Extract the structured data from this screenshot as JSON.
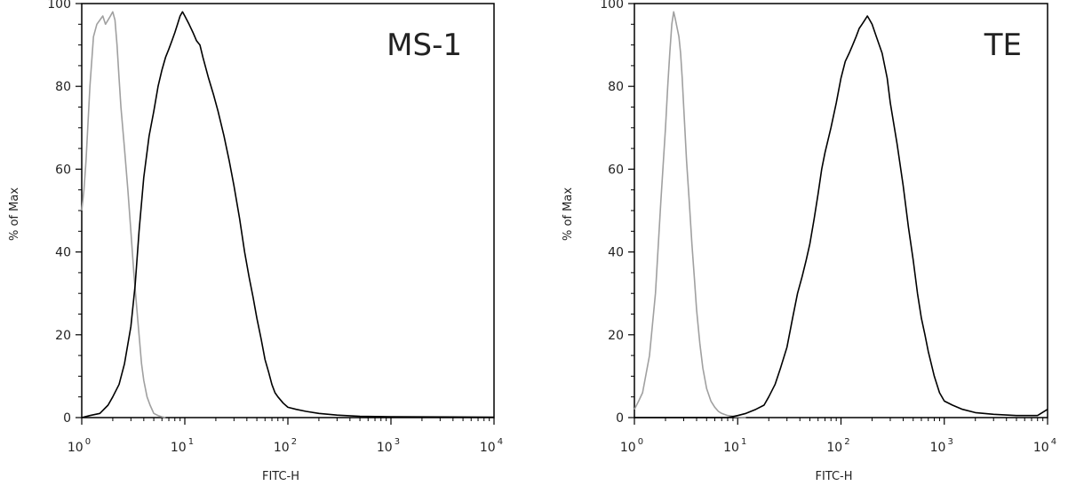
{
  "chart_data": [
    {
      "type": "line",
      "title": "MS-1",
      "xlabel": "FITC-H",
      "ylabel": "% of Max",
      "xscale": "log",
      "xlim": [
        1,
        10000
      ],
      "ylim": [
        0,
        100
      ],
      "x_tick_labels": [
        {
          "base": "10",
          "exp": "0"
        },
        {
          "base": "10",
          "exp": "1"
        },
        {
          "base": "10",
          "exp": "2"
        },
        {
          "base": "10",
          "exp": "3"
        },
        {
          "base": "10",
          "exp": "4"
        }
      ],
      "y_ticks": [
        0,
        20,
        40,
        60,
        80,
        100
      ],
      "y_tick_labels": [
        "0",
        "20",
        "40",
        "60",
        "80",
        "100"
      ],
      "series": [
        {
          "color": "#a0a0a0",
          "x": [
            1.0,
            1.05,
            1.1,
            1.2,
            1.3,
            1.4,
            1.5,
            1.6,
            1.7,
            1.8,
            1.9,
            2.0,
            2.1,
            2.2,
            2.3,
            2.4,
            2.6,
            2.8,
            3.0,
            3.2,
            3.4,
            3.6,
            3.8,
            4.0,
            4.3,
            4.6,
            5.0,
            5.5,
            6.0,
            6.5
          ],
          "y": [
            50,
            55,
            62,
            80,
            92,
            95,
            96,
            97,
            95,
            96,
            97,
            98,
            96,
            90,
            82,
            75,
            65,
            55,
            45,
            35,
            27,
            20,
            13,
            9,
            5,
            3,
            1,
            0.5,
            0.2,
            0
          ]
        },
        {
          "color": "#000000",
          "x": [
            1.0,
            1.2,
            1.5,
            1.8,
            2.0,
            2.3,
            2.6,
            3.0,
            3.3,
            3.6,
            4.0,
            4.5,
            5.0,
            5.5,
            6.0,
            6.5,
            7.0,
            7.5,
            8.0,
            8.5,
            9.0,
            9.5,
            10,
            11,
            12,
            13,
            14,
            15,
            17,
            19,
            21,
            24,
            27,
            30,
            34,
            38,
            42,
            46,
            50,
            55,
            60,
            65,
            70,
            75,
            80,
            90,
            100,
            120,
            150,
            200,
            300,
            500,
            1000,
            10000
          ],
          "y": [
            0,
            0.5,
            1,
            3,
            5,
            8,
            13,
            22,
            32,
            45,
            58,
            68,
            74,
            80,
            84,
            87,
            89,
            91,
            93,
            95,
            97,
            98,
            97,
            95,
            93,
            91,
            90,
            87,
            82,
            78,
            74,
            68,
            62,
            56,
            48,
            40,
            34,
            29,
            24,
            19,
            14,
            11,
            8,
            6,
            5,
            3.5,
            2.5,
            2,
            1.5,
            1,
            0.6,
            0.3,
            0.2,
            0.1
          ]
        }
      ]
    },
    {
      "type": "line",
      "title": "TE",
      "xlabel": "FITC-H",
      "ylabel": "% of Max",
      "xscale": "log",
      "xlim": [
        1,
        10000
      ],
      "ylim": [
        0,
        100
      ],
      "x_tick_labels": [
        {
          "base": "10",
          "exp": "0"
        },
        {
          "base": "10",
          "exp": "1"
        },
        {
          "base": "10",
          "exp": "2"
        },
        {
          "base": "10",
          "exp": "3"
        },
        {
          "base": "10",
          "exp": "4"
        }
      ],
      "y_ticks": [
        0,
        20,
        40,
        60,
        80,
        100
      ],
      "y_tick_labels": [
        "0",
        "20",
        "40",
        "60",
        "80",
        "100"
      ],
      "series": [
        {
          "color": "#a0a0a0",
          "x": [
            1.0,
            1.1,
            1.2,
            1.4,
            1.6,
            1.8,
            2.0,
            2.1,
            2.2,
            2.3,
            2.4,
            2.5,
            2.6,
            2.7,
            2.8,
            2.9,
            3.0,
            3.2,
            3.4,
            3.6,
            3.8,
            4.0,
            4.3,
            4.6,
            5.0,
            5.5,
            6.0,
            6.5,
            7.0,
            8.0,
            9.0,
            10,
            12
          ],
          "y": [
            2,
            4,
            6,
            15,
            30,
            52,
            70,
            80,
            88,
            95,
            98,
            96,
            94,
            92,
            88,
            82,
            75,
            62,
            52,
            42,
            34,
            26,
            18,
            12,
            7,
            4,
            2.5,
            1.5,
            1,
            0.5,
            0.3,
            0.1,
            0
          ]
        },
        {
          "color": "#000000",
          "x": [
            1.0,
            5,
            8,
            10,
            12,
            15,
            18,
            20,
            23,
            26,
            30,
            34,
            38,
            42,
            46,
            50,
            55,
            60,
            65,
            70,
            80,
            90,
            100,
            110,
            120,
            130,
            140,
            150,
            160,
            170,
            180,
            190,
            200,
            220,
            250,
            280,
            300,
            350,
            400,
            450,
            500,
            550,
            600,
            650,
            700,
            800,
            900,
            1000,
            1200,
            1500,
            2000,
            3000,
            5000,
            8000,
            10000
          ],
          "y": [
            0,
            0,
            0,
            0.5,
            1,
            2,
            3,
            5,
            8,
            12,
            17,
            24,
            30,
            34,
            38,
            42,
            48,
            54,
            60,
            64,
            70,
            76,
            82,
            86,
            88,
            90,
            92,
            94,
            95,
            96,
            97,
            96,
            95,
            92,
            88,
            82,
            76,
            66,
            56,
            46,
            38,
            30,
            24,
            20,
            16,
            10,
            6,
            4,
            3,
            2,
            1.2,
            0.8,
            0.5,
            0.5,
            2
          ]
        }
      ]
    }
  ]
}
